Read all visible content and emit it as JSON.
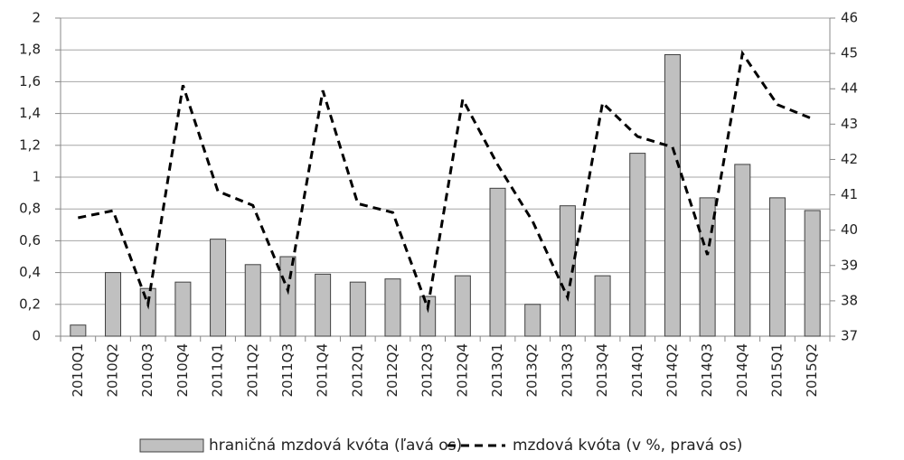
{
  "chart_data": {
    "type": "combo",
    "categories": [
      "2010Q1",
      "2010Q2",
      "2010Q3",
      "2010Q4",
      "2011Q1",
      "2011Q2",
      "2011Q3",
      "2011Q4",
      "2012Q1",
      "2012Q2",
      "2012Q3",
      "2012Q4",
      "2013Q1",
      "2013Q2",
      "2013Q3",
      "2013Q4",
      "2014Q1",
      "2014Q2",
      "2014Q3",
      "2014Q4",
      "2015Q1",
      "2015Q2"
    ],
    "series": [
      {
        "name": "hraničná mzdová kvóta (ľavá os)",
        "type": "bar",
        "color": "#c0c0c0",
        "values": [
          0.07,
          0.4,
          0.3,
          0.34,
          0.61,
          0.45,
          0.5,
          0.39,
          0.34,
          0.36,
          0.25,
          0.38,
          0.93,
          0.2,
          0.82,
          0.38,
          1.15,
          1.77,
          0.87,
          1.08,
          0.87,
          0.79
        ]
      },
      {
        "name": "mzdová kvóta (v %, pravá os)",
        "type": "line",
        "axis": "y2",
        "color": "#000000",
        "values": [
          40.35,
          40.55,
          37.9,
          44.1,
          41.1,
          40.7,
          38.3,
          43.95,
          40.75,
          40.5,
          37.8,
          43.7,
          41.85,
          40.25,
          38.1,
          43.6,
          42.65,
          42.35,
          39.3,
          45.0,
          43.55,
          43.15
        ]
      }
    ],
    "ylim": [
      0,
      2
    ],
    "yticks": [
      0,
      {
        "value": 0.2,
        "label": "0,2"
      },
      {
        "value": 0.4,
        "label": "0,4"
      },
      {
        "value": 0.6,
        "label": "0,6"
      },
      {
        "value": 0.8,
        "label": "0,8"
      },
      1,
      {
        "value": 1.2,
        "label": "1,2"
      },
      {
        "value": 1.4,
        "label": "1,4"
      },
      {
        "value": 1.6,
        "label": "1,6"
      },
      {
        "value": 1.8,
        "label": "1,8"
      },
      2
    ],
    "y2lim": [
      37,
      46
    ],
    "y2ticks": [
      37,
      38,
      39,
      40,
      41,
      42,
      43,
      44,
      45,
      46
    ],
    "grid": true
  }
}
